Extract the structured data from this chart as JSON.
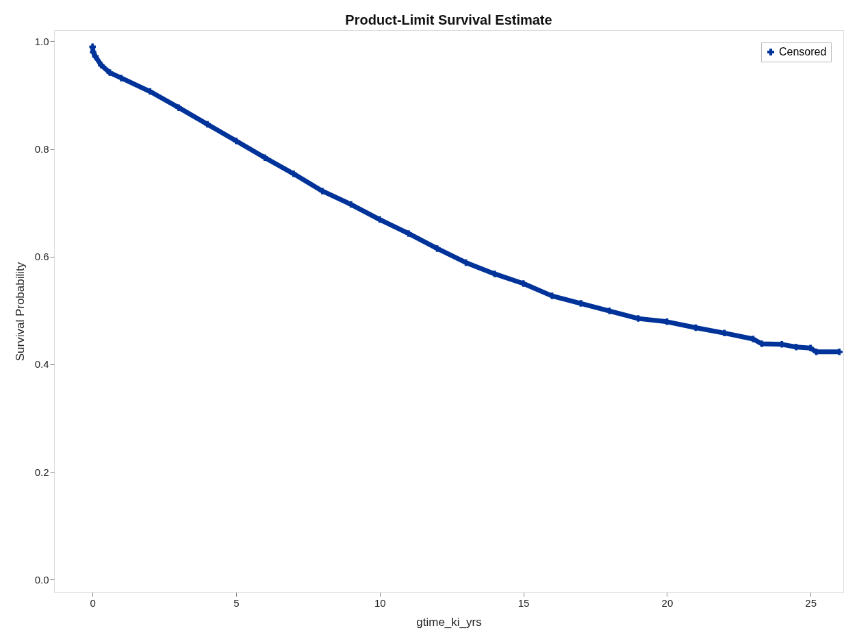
{
  "chart_data": {
    "type": "line",
    "title": "Product-Limit Survival Estimate",
    "xlabel": "gtime_ki_yrs",
    "ylabel": "Survival Probability",
    "xlim": [
      -1.34,
      26.14
    ],
    "ylim": [
      -0.024,
      1.021
    ],
    "xticks": [
      0,
      5,
      10,
      15,
      20,
      25
    ],
    "yticks": [
      {
        "value": 0,
        "label": "0.0"
      },
      {
        "value": 0.2,
        "label": "0.2"
      },
      {
        "value": 0.4,
        "label": "0.4"
      },
      {
        "value": 0.6,
        "label": "0.6"
      },
      {
        "value": 0.8,
        "label": "0.8"
      },
      {
        "value": 1,
        "label": "1.0"
      }
    ],
    "grid": false,
    "legend": "top right",
    "series": [
      {
        "color": "#003399",
        "line_style": "solid",
        "x": [
          0,
          0.02,
          0.1,
          0.3,
          0.6,
          1,
          2,
          3,
          4,
          5,
          6,
          7,
          8,
          9,
          10,
          11,
          12,
          13,
          14,
          15,
          16,
          17,
          18,
          19,
          20,
          21,
          22,
          23,
          23.3,
          24,
          24.5,
          25,
          25.2,
          26
        ],
        "values": [
          0.99,
          0.98,
          0.972,
          0.956,
          0.942,
          0.932,
          0.907,
          0.877,
          0.846,
          0.815,
          0.784,
          0.754,
          0.722,
          0.697,
          0.669,
          0.643,
          0.615,
          0.589,
          0.568,
          0.55,
          0.527,
          0.513,
          0.499,
          0.485,
          0.479,
          0.468,
          0.458,
          0.447,
          0.438,
          0.437,
          0.432,
          0.43,
          0.423,
          0.423
        ]
      },
      {
        "type": "scatter",
        "name": "Censored",
        "color": "#003399",
        "marker": "cross",
        "x": [
          0,
          0.02,
          0.1,
          0.3,
          0.6,
          1,
          2,
          3,
          4,
          5,
          6,
          7,
          8,
          9,
          10,
          11,
          12,
          13,
          14,
          15,
          16,
          17,
          18,
          19,
          20,
          21,
          22,
          23,
          23.3,
          24,
          24.5,
          25,
          25.2,
          26
        ],
        "values": [
          0.99,
          0.98,
          0.972,
          0.956,
          0.942,
          0.932,
          0.907,
          0.877,
          0.846,
          0.815,
          0.784,
          0.754,
          0.722,
          0.697,
          0.669,
          0.643,
          0.615,
          0.589,
          0.568,
          0.55,
          0.527,
          0.513,
          0.499,
          0.485,
          0.479,
          0.468,
          0.458,
          0.447,
          0.438,
          0.437,
          0.432,
          0.43,
          0.423,
          0.423
        ]
      }
    ]
  }
}
